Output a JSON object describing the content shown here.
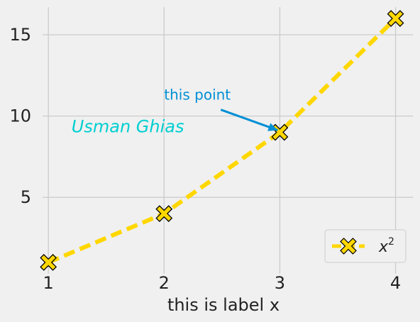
{
  "chart_data": {
    "type": "line",
    "title": "",
    "xlabel": "this is label x",
    "ylabel": "",
    "x": [
      1,
      2,
      3,
      4
    ],
    "series": [
      {
        "name": "x",
        "name_superscript": "2",
        "values": [
          1,
          4,
          9,
          16
        ],
        "color": "#ffd700",
        "marker": "X",
        "marker_edge": "#000000",
        "linestyle": "dashed"
      }
    ],
    "xticks": [
      "1",
      "2",
      "3",
      "4"
    ],
    "yticks": [
      "5",
      "10",
      "15"
    ],
    "xlim": [
      0.95,
      4.15
    ],
    "ylim": [
      0.3,
      16.7
    ],
    "grid": true,
    "legend": {
      "position": "lower-right"
    },
    "annotation": {
      "text": "this point",
      "color": "#008fd5",
      "target": [
        3,
        9
      ],
      "text_at": [
        2,
        11
      ]
    },
    "free_text": {
      "text": "Usman Ghias",
      "color": "#00cfd1",
      "at": [
        1.2,
        9
      ]
    }
  }
}
